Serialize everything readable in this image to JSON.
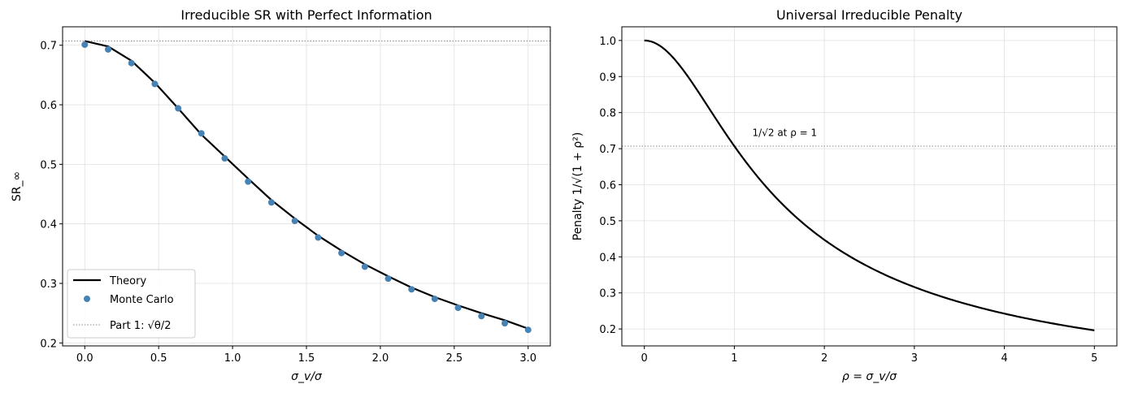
{
  "chart_data": [
    {
      "type": "line",
      "title": "Irreducible SR with Perfect Information",
      "xlabel": "σ_v/σ",
      "ylabel": "SR_∞",
      "xlim": [
        -0.15,
        3.15
      ],
      "ylim": [
        0.195,
        0.731
      ],
      "xticks": [
        0,
        0.5,
        1,
        1.5,
        2,
        2.5,
        3
      ],
      "xtick_labels": [
        "0.0",
        "0.5",
        "1.0",
        "1.5",
        "2.0",
        "2.5",
        "3.0"
      ],
      "yticks": [
        0.2,
        0.3,
        0.4,
        0.5,
        0.6,
        0.7
      ],
      "ytick_labels": [
        "0.2",
        "0.3",
        "0.4",
        "0.5",
        "0.6",
        "0.7"
      ],
      "grid": true,
      "legend": {
        "placement": "lower-left",
        "entries": [
          "Theory",
          "Monte Carlo",
          "Part 1: √θ/2"
        ]
      },
      "x": [
        0,
        0.158,
        0.316,
        0.474,
        0.632,
        0.789,
        0.947,
        1.105,
        1.263,
        1.421,
        1.579,
        1.737,
        1.895,
        2.053,
        2.211,
        2.368,
        2.526,
        2.684,
        2.842,
        3.0
      ],
      "series": [
        {
          "name": "Theory",
          "style": "line",
          "color": "#000000",
          "values": [
            0.707,
            0.698,
            0.674,
            0.637,
            0.594,
            0.55,
            0.513,
            0.476,
            0.44,
            0.409,
            0.38,
            0.355,
            0.332,
            0.312,
            0.293,
            0.277,
            0.263,
            0.25,
            0.238,
            0.224
          ]
        },
        {
          "name": "Monte Carlo",
          "style": "markers",
          "color": "#4682b4",
          "values": [
            0.701,
            0.693,
            0.67,
            0.635,
            0.594,
            0.552,
            0.51,
            0.471,
            0.436,
            0.405,
            0.377,
            0.351,
            0.328,
            0.308,
            0.29,
            0.274,
            0.259,
            0.245,
            0.233,
            0.222
          ]
        }
      ],
      "hline": {
        "y": 0.7071,
        "label": "Part 1: √θ/2",
        "color": "#888888"
      }
    },
    {
      "type": "line",
      "title": "Universal Irreducible Penalty",
      "xlabel": "ρ = σ_v/σ",
      "ylabel": "Penalty 1/√(1 + ρ²)",
      "xlim": [
        -0.25,
        5.25
      ],
      "ylim": [
        0.153,
        1.038
      ],
      "xticks": [
        0,
        1,
        2,
        3,
        4,
        5
      ],
      "xtick_labels": [
        "0",
        "1",
        "2",
        "3",
        "4",
        "5"
      ],
      "yticks": [
        0.2,
        0.3,
        0.4,
        0.5,
        0.6,
        0.7,
        0.8,
        0.9,
        1.0
      ],
      "ytick_labels": [
        "0.2",
        "0.3",
        "0.4",
        "0.5",
        "0.6",
        "0.7",
        "0.8",
        "0.9",
        "1.0"
      ],
      "grid": true,
      "series": [
        {
          "name": "Penalty",
          "function": "1/sqrt(1+x^2)",
          "x_range": [
            0,
            5
          ],
          "color": "#000000"
        }
      ],
      "hline": {
        "y": 0.7071,
        "color": "#888888"
      },
      "annotation": {
        "text": "1/√2 at ρ = 1",
        "x": 1.2,
        "y": 0.735
      }
    }
  ]
}
